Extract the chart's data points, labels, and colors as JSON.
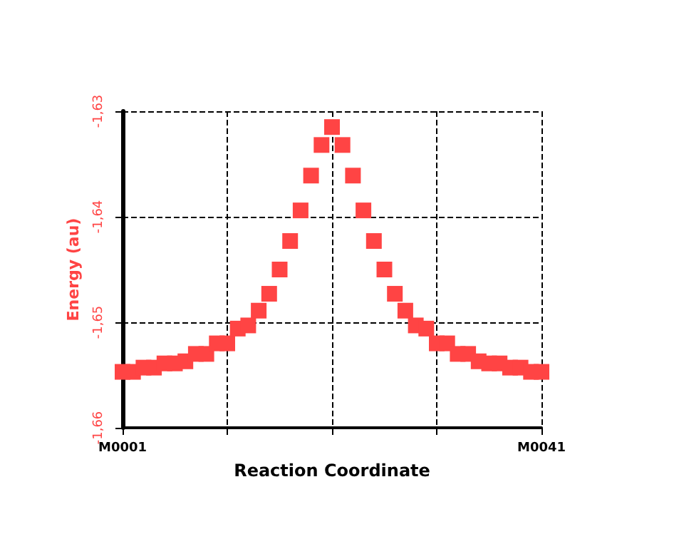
{
  "chart_data": {
    "type": "scatter",
    "xlabel": "Reaction Coordinate",
    "ylabel": "Energy (au)",
    "categories": [
      "M0001",
      null,
      null,
      null,
      null,
      null,
      null,
      null,
      null,
      null,
      null,
      null,
      null,
      null,
      null,
      null,
      null,
      null,
      null,
      null,
      null,
      null,
      null,
      null,
      null,
      null,
      null,
      null,
      null,
      null,
      null,
      null,
      null,
      null,
      null,
      null,
      null,
      null,
      null,
      null,
      "M0041"
    ],
    "values": [
      -1.6547,
      -1.6547,
      -1.6543,
      -1.6543,
      -1.6539,
      -1.6539,
      -1.6537,
      -1.653,
      -1.653,
      -1.652,
      -1.652,
      -1.6506,
      -1.6503,
      -1.6489,
      -1.6473,
      -1.645,
      -1.6423,
      -1.6394,
      -1.6361,
      -1.6332,
      -1.6315,
      -1.6332,
      -1.6361,
      -1.6394,
      -1.6423,
      -1.645,
      -1.6473,
      -1.6489,
      -1.6503,
      -1.6506,
      -1.652,
      -1.652,
      -1.653,
      -1.653,
      -1.6537,
      -1.6539,
      -1.6539,
      -1.6543,
      -1.6543,
      -1.6547,
      -1.6547
    ],
    "color": "#ff4444",
    "marker": "square",
    "grid": true,
    "ylim": [
      -1.66,
      -1.63
    ],
    "yticks": [
      {
        "value": -1.66,
        "label": "-1,66"
      },
      {
        "value": -1.65,
        "label": "-1,65"
      },
      {
        "value": -1.64,
        "label": "-1,64"
      },
      {
        "value": -1.63,
        "label": "-1,63"
      }
    ]
  }
}
